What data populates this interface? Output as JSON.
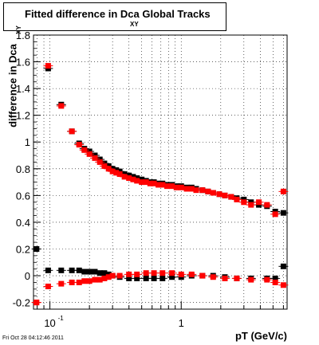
{
  "title": {
    "main": "Fitted difference in Dca",
    "sub": "XY",
    "suffix": "Global Tracks"
  },
  "footer": "Fri Oct 28 04:12:46 2011",
  "colors": {
    "series1": "#000000",
    "series2": "#ff0000"
  },
  "chart_data": {
    "type": "scatter",
    "title": "Fitted difference in Dca XY Global Tracks",
    "xlabel": "pT (GeV/c)",
    "ylabel": "difference in Dca",
    "ylabel_sub": "XY",
    "x_scale": "log",
    "xlim": [
      0.075,
      6.4
    ],
    "ylim": [
      -0.25,
      1.8
    ],
    "grid": true,
    "xticks": [
      {
        "v": 0.1,
        "base": "10",
        "exp": "-1"
      },
      {
        "v": 1,
        "base": "1",
        "exp": ""
      }
    ],
    "yticks": [
      "-0.2",
      "0",
      "0.2",
      "0.4",
      "0.6",
      "0.8",
      "1",
      "1.2",
      "1.4",
      "1.6",
      "1.8"
    ],
    "series": [
      {
        "points": [
          [
            0.079,
            0.2
          ],
          [
            0.097,
            1.55
          ],
          [
            0.122,
            1.28
          ],
          [
            0.147,
            1.08
          ],
          [
            0.167,
            0.99
          ],
          [
            0.183,
            0.95
          ],
          [
            0.2,
            0.93
          ],
          [
            0.22,
            0.9
          ],
          [
            0.24,
            0.87
          ],
          [
            0.26,
            0.84
          ],
          [
            0.28,
            0.82
          ],
          [
            0.3,
            0.8
          ],
          [
            0.32,
            0.79
          ],
          [
            0.34,
            0.78
          ],
          [
            0.37,
            0.76
          ],
          [
            0.4,
            0.75
          ],
          [
            0.43,
            0.74
          ],
          [
            0.46,
            0.73
          ],
          [
            0.5,
            0.72
          ],
          [
            0.54,
            0.71
          ],
          [
            0.58,
            0.7
          ],
          [
            0.62,
            0.7
          ],
          [
            0.67,
            0.69
          ],
          [
            0.72,
            0.69
          ],
          [
            0.78,
            0.68
          ],
          [
            0.85,
            0.68
          ],
          [
            0.92,
            0.67
          ],
          [
            1.0,
            0.67
          ],
          [
            1.1,
            0.66
          ],
          [
            1.2,
            0.66
          ],
          [
            1.3,
            0.65
          ],
          [
            1.45,
            0.64
          ],
          [
            1.6,
            0.63
          ],
          [
            1.75,
            0.62
          ],
          [
            1.95,
            0.61
          ],
          [
            2.15,
            0.6
          ],
          [
            2.4,
            0.59
          ],
          [
            2.65,
            0.58
          ],
          [
            3.0,
            0.57
          ],
          [
            3.4,
            0.55
          ],
          [
            3.9,
            0.53
          ],
          [
            4.5,
            0.52
          ],
          [
            5.2,
            0.48
          ],
          [
            6.0,
            0.47
          ],
          [
            0.079,
            0.2
          ],
          [
            0.097,
            0.04
          ],
          [
            0.122,
            0.04
          ],
          [
            0.147,
            0.04
          ],
          [
            0.167,
            0.04
          ],
          [
            0.183,
            0.03
          ],
          [
            0.2,
            0.03
          ],
          [
            0.22,
            0.03
          ],
          [
            0.24,
            0.02
          ],
          [
            0.26,
            0.02
          ],
          [
            0.28,
            0.01
          ],
          [
            0.3,
            0.0
          ],
          [
            0.34,
            -0.01
          ],
          [
            0.4,
            -0.02
          ],
          [
            0.46,
            -0.02
          ],
          [
            0.54,
            -0.02
          ],
          [
            0.62,
            -0.02
          ],
          [
            0.72,
            -0.02
          ],
          [
            0.85,
            -0.01
          ],
          [
            1.0,
            -0.01
          ],
          [
            1.2,
            0.0
          ],
          [
            1.45,
            0.0
          ],
          [
            1.75,
            0.0
          ],
          [
            2.15,
            -0.01
          ],
          [
            2.65,
            -0.02
          ],
          [
            3.4,
            -0.02
          ],
          [
            4.5,
            -0.02
          ],
          [
            5.2,
            -0.02
          ],
          [
            6.0,
            0.07
          ]
        ]
      },
      {
        "points": [
          [
            0.079,
            -0.2
          ],
          [
            0.097,
            1.57
          ],
          [
            0.122,
            1.27
          ],
          [
            0.147,
            1.08
          ],
          [
            0.167,
            0.98
          ],
          [
            0.183,
            0.94
          ],
          [
            0.2,
            0.91
          ],
          [
            0.22,
            0.88
          ],
          [
            0.24,
            0.85
          ],
          [
            0.26,
            0.82
          ],
          [
            0.28,
            0.8
          ],
          [
            0.3,
            0.78
          ],
          [
            0.32,
            0.77
          ],
          [
            0.34,
            0.76
          ],
          [
            0.37,
            0.74
          ],
          [
            0.4,
            0.73
          ],
          [
            0.43,
            0.72
          ],
          [
            0.46,
            0.71
          ],
          [
            0.5,
            0.7
          ],
          [
            0.54,
            0.7
          ],
          [
            0.58,
            0.69
          ],
          [
            0.62,
            0.69
          ],
          [
            0.67,
            0.68
          ],
          [
            0.72,
            0.68
          ],
          [
            0.78,
            0.67
          ],
          [
            0.85,
            0.67
          ],
          [
            0.92,
            0.66
          ],
          [
            1.0,
            0.66
          ],
          [
            1.1,
            0.65
          ],
          [
            1.2,
            0.65
          ],
          [
            1.3,
            0.64
          ],
          [
            1.45,
            0.64
          ],
          [
            1.6,
            0.63
          ],
          [
            1.75,
            0.62
          ],
          [
            1.95,
            0.61
          ],
          [
            2.15,
            0.6
          ],
          [
            2.4,
            0.59
          ],
          [
            2.65,
            0.57
          ],
          [
            3.0,
            0.55
          ],
          [
            3.4,
            0.53
          ],
          [
            3.9,
            0.55
          ],
          [
            4.5,
            0.53
          ],
          [
            5.2,
            0.46
          ],
          [
            6.0,
            0.63
          ],
          [
            0.079,
            -0.2
          ],
          [
            0.097,
            -0.08
          ],
          [
            0.122,
            -0.06
          ],
          [
            0.147,
            -0.05
          ],
          [
            0.167,
            -0.05
          ],
          [
            0.183,
            -0.04
          ],
          [
            0.2,
            -0.04
          ],
          [
            0.22,
            -0.03
          ],
          [
            0.24,
            -0.03
          ],
          [
            0.26,
            -0.02
          ],
          [
            0.28,
            -0.01
          ],
          [
            0.3,
            0.0
          ],
          [
            0.34,
            0.0
          ],
          [
            0.4,
            0.01
          ],
          [
            0.46,
            0.01
          ],
          [
            0.54,
            0.02
          ],
          [
            0.62,
            0.02
          ],
          [
            0.72,
            0.02
          ],
          [
            0.85,
            0.02
          ],
          [
            1.0,
            0.01
          ],
          [
            1.2,
            0.01
          ],
          [
            1.45,
            0.0
          ],
          [
            1.75,
            -0.01
          ],
          [
            2.15,
            -0.02
          ],
          [
            2.65,
            -0.02
          ],
          [
            3.4,
            -0.03
          ],
          [
            4.5,
            -0.03
          ],
          [
            5.2,
            -0.05
          ],
          [
            6.0,
            -0.07
          ]
        ]
      }
    ]
  }
}
